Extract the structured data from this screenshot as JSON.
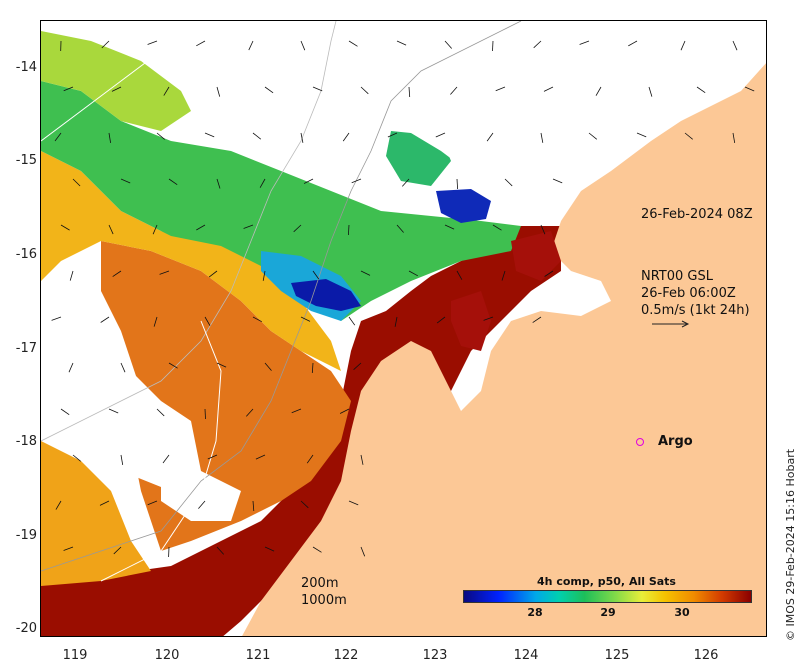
{
  "map": {
    "y_ticks": [
      "-14",
      "-15",
      "-16",
      "-17",
      "-18",
      "-19",
      "-20"
    ],
    "x_ticks": [
      "119",
      "120",
      "121",
      "122",
      "123",
      "124",
      "125",
      "126"
    ],
    "timestamp_label": "26-Feb-2024 08Z",
    "current_info": {
      "line1": "NRT00 GSL",
      "line2": "26-Feb 06:00Z",
      "line3": "0.5m/s (1kt 24h)"
    },
    "argo_label": "Argo",
    "contour_labels": [
      "200m",
      "1000m"
    ],
    "credit": "© IMOS 29-Feb-2024 15:16 Hobart",
    "colorbar": {
      "title": "4h comp, p50, All Sats",
      "ticks": [
        "28",
        "29",
        "30"
      ]
    },
    "colors": {
      "land": "#fcc896",
      "argo": "#e000e0",
      "contour_line": "#999999"
    }
  }
}
